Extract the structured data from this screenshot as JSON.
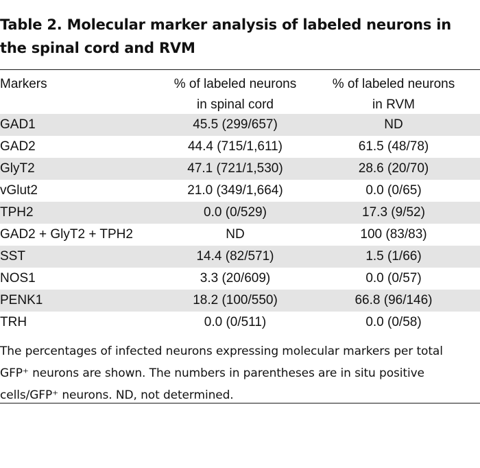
{
  "title": "Table 2. Molecular marker analysis of labeled neurons in the spinal cord and RVM",
  "columns": {
    "markers": "Markers",
    "spinal_line1": "% of labeled neurons",
    "spinal_line2": "in spinal cord",
    "rvm_line1": "% of labeled neurons",
    "rvm_line2": "in RVM"
  },
  "rows": [
    {
      "marker": "GAD1",
      "spinal": "45.5 (299/657)",
      "rvm": "ND"
    },
    {
      "marker": "GAD2",
      "spinal": "44.4 (715/1,611)",
      "rvm": "61.5 (48/78)"
    },
    {
      "marker": "GlyT2",
      "spinal": "47.1 (721/1,530)",
      "rvm": "28.6 (20/70)"
    },
    {
      "marker": "vGlut2",
      "spinal": "21.0 (349/1,664)",
      "rvm": "0.0 (0/65)"
    },
    {
      "marker": "TPH2",
      "spinal": "0.0 (0/529)",
      "rvm": "17.3 (9/52)"
    },
    {
      "marker": "GAD2 + GlyT2 + TPH2",
      "spinal": "ND",
      "rvm": "100 (83/83)"
    },
    {
      "marker": "SST",
      "spinal": "14.4 (82/571)",
      "rvm": "1.5 (1/66)"
    },
    {
      "marker": "NOS1",
      "spinal": "3.3 (20/609)",
      "rvm": "0.0 (0/57)"
    },
    {
      "marker": "PENK1",
      "spinal": "18.2 (100/550)",
      "rvm": "66.8 (96/146)"
    },
    {
      "marker": "TRH",
      "spinal": "0.0 (0/511)",
      "rvm": "0.0 (0/58)"
    }
  ],
  "footnote": "The percentages of infected neurons expressing molecular markers per total GFP⁺ neurons are shown. The numbers in parentheses are in situ positive cells/GFP⁺ neurons. ND, not determined.",
  "colors": {
    "shade": "#e4e4e4",
    "rule": "#1a1a1a"
  }
}
